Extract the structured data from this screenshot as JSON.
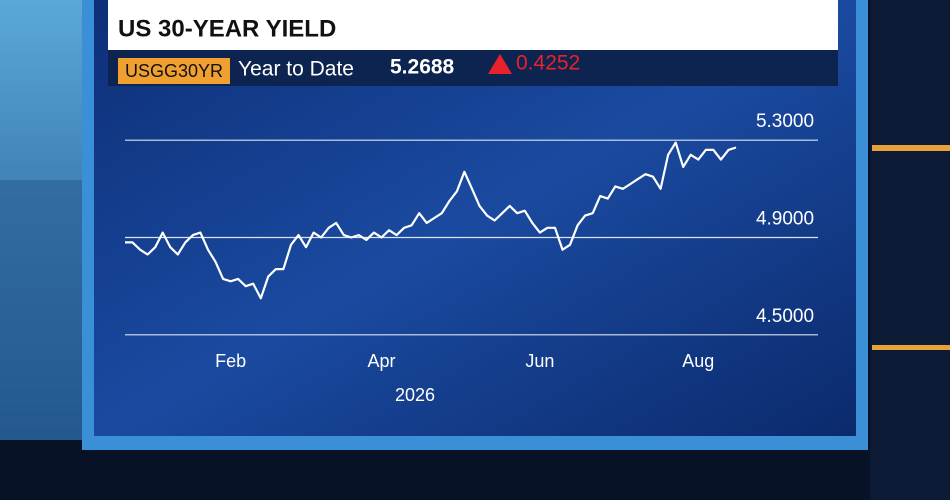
{
  "chart_data": {
    "type": "line",
    "title": "US 30-YEAR YIELD",
    "ticker": "USGG30YR",
    "period": "Year to Date",
    "last": 5.2688,
    "change": 0.4252,
    "xlabel": "2026",
    "color": "#ffffff",
    "grid": true,
    "ylim": [
      4.45,
      5.35
    ],
    "yticks": [
      {
        "value": 4.5,
        "label": "4.5000"
      },
      {
        "value": 4.9,
        "label": "4.9000"
      },
      {
        "value": 5.3,
        "label": "5.3000"
      }
    ],
    "categories": [
      null,
      null,
      null,
      null,
      null,
      null,
      null,
      null,
      null,
      null,
      null,
      null,
      null,
      null,
      "Feb",
      null,
      null,
      null,
      null,
      null,
      null,
      null,
      null,
      null,
      null,
      null,
      null,
      null,
      null,
      null,
      null,
      null,
      null,
      null,
      "Apr",
      null,
      null,
      null,
      null,
      null,
      null,
      null,
      null,
      null,
      null,
      null,
      null,
      null,
      null,
      null,
      null,
      null,
      null,
      null,
      null,
      "Jun",
      null,
      null,
      null,
      null,
      null,
      null,
      null,
      null,
      null,
      null,
      null,
      null,
      null,
      null,
      null,
      null,
      null,
      null,
      null,
      null,
      "Aug",
      null,
      null,
      null,
      null,
      null
    ],
    "values": [
      4.88,
      4.88,
      4.85,
      4.83,
      4.86,
      4.92,
      4.86,
      4.83,
      4.88,
      4.91,
      4.92,
      4.85,
      4.8,
      4.73,
      4.72,
      4.73,
      4.7,
      4.71,
      4.65,
      4.74,
      4.77,
      4.77,
      4.87,
      4.91,
      4.86,
      4.92,
      4.9,
      4.94,
      4.96,
      4.91,
      4.9,
      4.91,
      4.89,
      4.92,
      4.9,
      4.93,
      4.91,
      4.94,
      4.95,
      5.0,
      4.96,
      4.98,
      5.0,
      5.05,
      5.09,
      5.17,
      5.1,
      5.03,
      4.99,
      4.97,
      5.0,
      5.03,
      5.0,
      5.01,
      4.96,
      4.92,
      4.94,
      4.94,
      4.85,
      4.87,
      4.95,
      4.99,
      5.0,
      5.07,
      5.06,
      5.11,
      5.1,
      5.12,
      5.14,
      5.16,
      5.15,
      5.1,
      5.24,
      5.29,
      5.19,
      5.24,
      5.22,
      5.26,
      5.26,
      5.22,
      5.26,
      5.27
    ]
  }
}
